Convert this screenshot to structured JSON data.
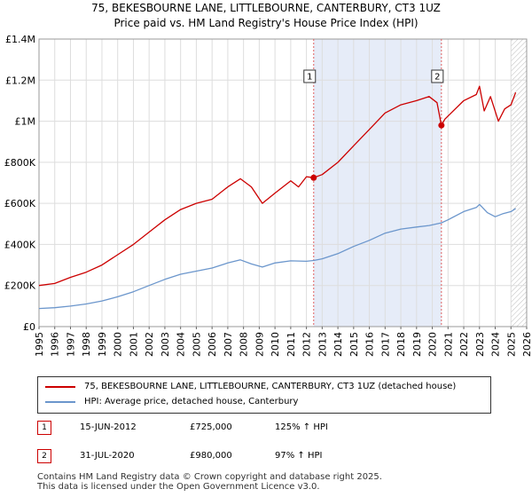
{
  "title_line1": "75, BEKESBOURNE LANE, LITTLEBOURNE, CANTERBURY, CT3 1UZ",
  "title_line2": "Price paid vs. HM Land Registry's House Price Index (HPI)",
  "chart_data": {
    "type": "line",
    "xlim": [
      1995,
      2026
    ],
    "ylim": [
      0,
      1400000
    ],
    "x_ticks": [
      "1995",
      "1996",
      "1997",
      "1998",
      "1999",
      "2000",
      "2001",
      "2002",
      "2003",
      "2004",
      "2005",
      "2006",
      "2007",
      "2008",
      "2009",
      "2010",
      "2011",
      "2012",
      "2013",
      "2014",
      "2015",
      "2016",
      "2017",
      "2018",
      "2019",
      "2020",
      "2021",
      "2022",
      "2023",
      "2024",
      "2025",
      "2026"
    ],
    "y_ticks": [
      {
        "value": 0,
        "label": "£0"
      },
      {
        "value": 200000,
        "label": "£200K"
      },
      {
        "value": 400000,
        "label": "£400K"
      },
      {
        "value": 600000,
        "label": "£600K"
      },
      {
        "value": 800000,
        "label": "£800K"
      },
      {
        "value": 1000000,
        "label": "£1M"
      },
      {
        "value": 1200000,
        "label": "£1.2M"
      },
      {
        "value": 1400000,
        "label": "£1.4M"
      }
    ],
    "series": [
      {
        "name": "75, BEKESBOURNE LANE, LITTLEBOURNE, CANTERBURY, CT3 1UZ (detached house)",
        "color": "#cc0000",
        "x": [
          1995,
          1996,
          1997,
          1998,
          1999,
          2000,
          2001,
          2002,
          2003,
          2004,
          2005,
          2006,
          2007,
          2007.8,
          2008.5,
          2009.2,
          2010,
          2011,
          2011.5,
          2012,
          2012.46,
          2013,
          2014,
          2015,
          2016,
          2017,
          2018,
          2019,
          2019.8,
          2020.3,
          2020.58,
          2020.8,
          2021.2,
          2022,
          2022.8,
          2023,
          2023.3,
          2023.7,
          2024.2,
          2024.6,
          2025,
          2025.3
        ],
        "values": [
          200000,
          210000,
          240000,
          265000,
          300000,
          350000,
          400000,
          460000,
          520000,
          570000,
          600000,
          620000,
          680000,
          720000,
          680000,
          600000,
          650000,
          710000,
          680000,
          730000,
          725000,
          740000,
          800000,
          880000,
          960000,
          1040000,
          1080000,
          1100000,
          1120000,
          1090000,
          980000,
          1010000,
          1040000,
          1100000,
          1130000,
          1170000,
          1050000,
          1120000,
          1000000,
          1060000,
          1080000,
          1140000
        ]
      },
      {
        "name": "HPI: Average price, detached house, Canterbury",
        "color": "#6b96cc",
        "x": [
          1995,
          1996,
          1997,
          1998,
          1999,
          2000,
          2001,
          2002,
          2003,
          2004,
          2005,
          2006,
          2007,
          2007.8,
          2008.5,
          2009.2,
          2010,
          2011,
          2012,
          2012.46,
          2013,
          2014,
          2015,
          2016,
          2017,
          2018,
          2019,
          2019.8,
          2020.58,
          2021,
          2022,
          2022.8,
          2023,
          2023.5,
          2024,
          2024.5,
          2025,
          2025.3
        ],
        "values": [
          88000,
          92000,
          100000,
          110000,
          125000,
          145000,
          170000,
          200000,
          230000,
          255000,
          270000,
          285000,
          310000,
          325000,
          305000,
          290000,
          310000,
          320000,
          318000,
          322000,
          330000,
          355000,
          390000,
          420000,
          455000,
          475000,
          485000,
          492000,
          505000,
          520000,
          560000,
          580000,
          595000,
          555000,
          535000,
          550000,
          560000,
          575000
        ]
      }
    ],
    "annotations": [
      {
        "label": "1",
        "x": 2012.46,
        "y": 725000
      },
      {
        "label": "2",
        "x": 2020.58,
        "y": 980000
      }
    ],
    "shaded_span": [
      2012.46,
      2020.58
    ],
    "hatched_from": 2025.0
  },
  "legend": {
    "property_label": "75, BEKESBOURNE LANE, LITTLEBOURNE, CANTERBURY, CT3 1UZ (detached house)",
    "hpi_label": "HPI: Average price, detached house, Canterbury"
  },
  "sales": [
    {
      "num": "1",
      "date": "15-JUN-2012",
      "price": "£725,000",
      "hpi": "125% ↑ HPI"
    },
    {
      "num": "2",
      "date": "31-JUL-2020",
      "price": "£980,000",
      "hpi": "97% ↑ HPI"
    }
  ],
  "footer_line1": "Contains HM Land Registry data © Crown copyright and database right 2025.",
  "footer_line2": "This data is licensed under the Open Government Licence v3.0."
}
